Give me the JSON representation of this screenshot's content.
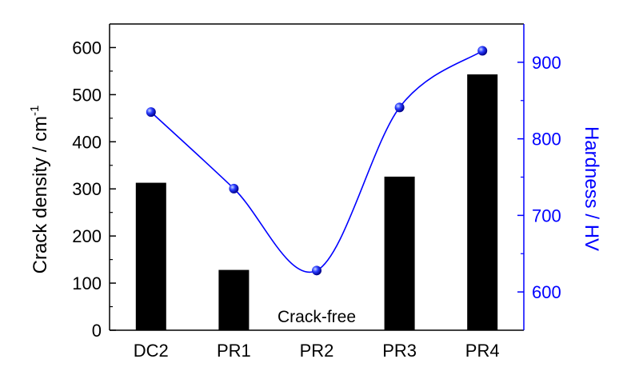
{
  "chart_data": {
    "type": "bar",
    "categories": [
      "DC2",
      "PR1",
      "PR2",
      "PR3",
      "PR4"
    ],
    "series": [
      {
        "name": "Crack density",
        "type": "bar",
        "axis": "left",
        "values": [
          313,
          128,
          0,
          326,
          543
        ],
        "color": "#000000"
      },
      {
        "name": "Hardness",
        "type": "line",
        "axis": "right",
        "values": [
          835,
          735,
          628,
          841,
          915
        ],
        "color": "#0000ff"
      }
    ],
    "ylabel": "Crack density / cm",
    "ylabel_superscript": "-1",
    "ylim": [
      0,
      650
    ],
    "yticks": [
      "0",
      "100",
      "200",
      "300",
      "400",
      "500",
      "600"
    ],
    "y2label": "Hardness / HV",
    "y2lim": [
      550,
      950
    ],
    "y2ticks": [
      "600",
      "700",
      "800",
      "900"
    ],
    "annotations": [
      {
        "text": "Crack-free",
        "category": "PR2"
      }
    ],
    "grid": false,
    "legend": "none",
    "colors": {
      "axis": "#000000",
      "right_axis": "#0000ff"
    }
  }
}
